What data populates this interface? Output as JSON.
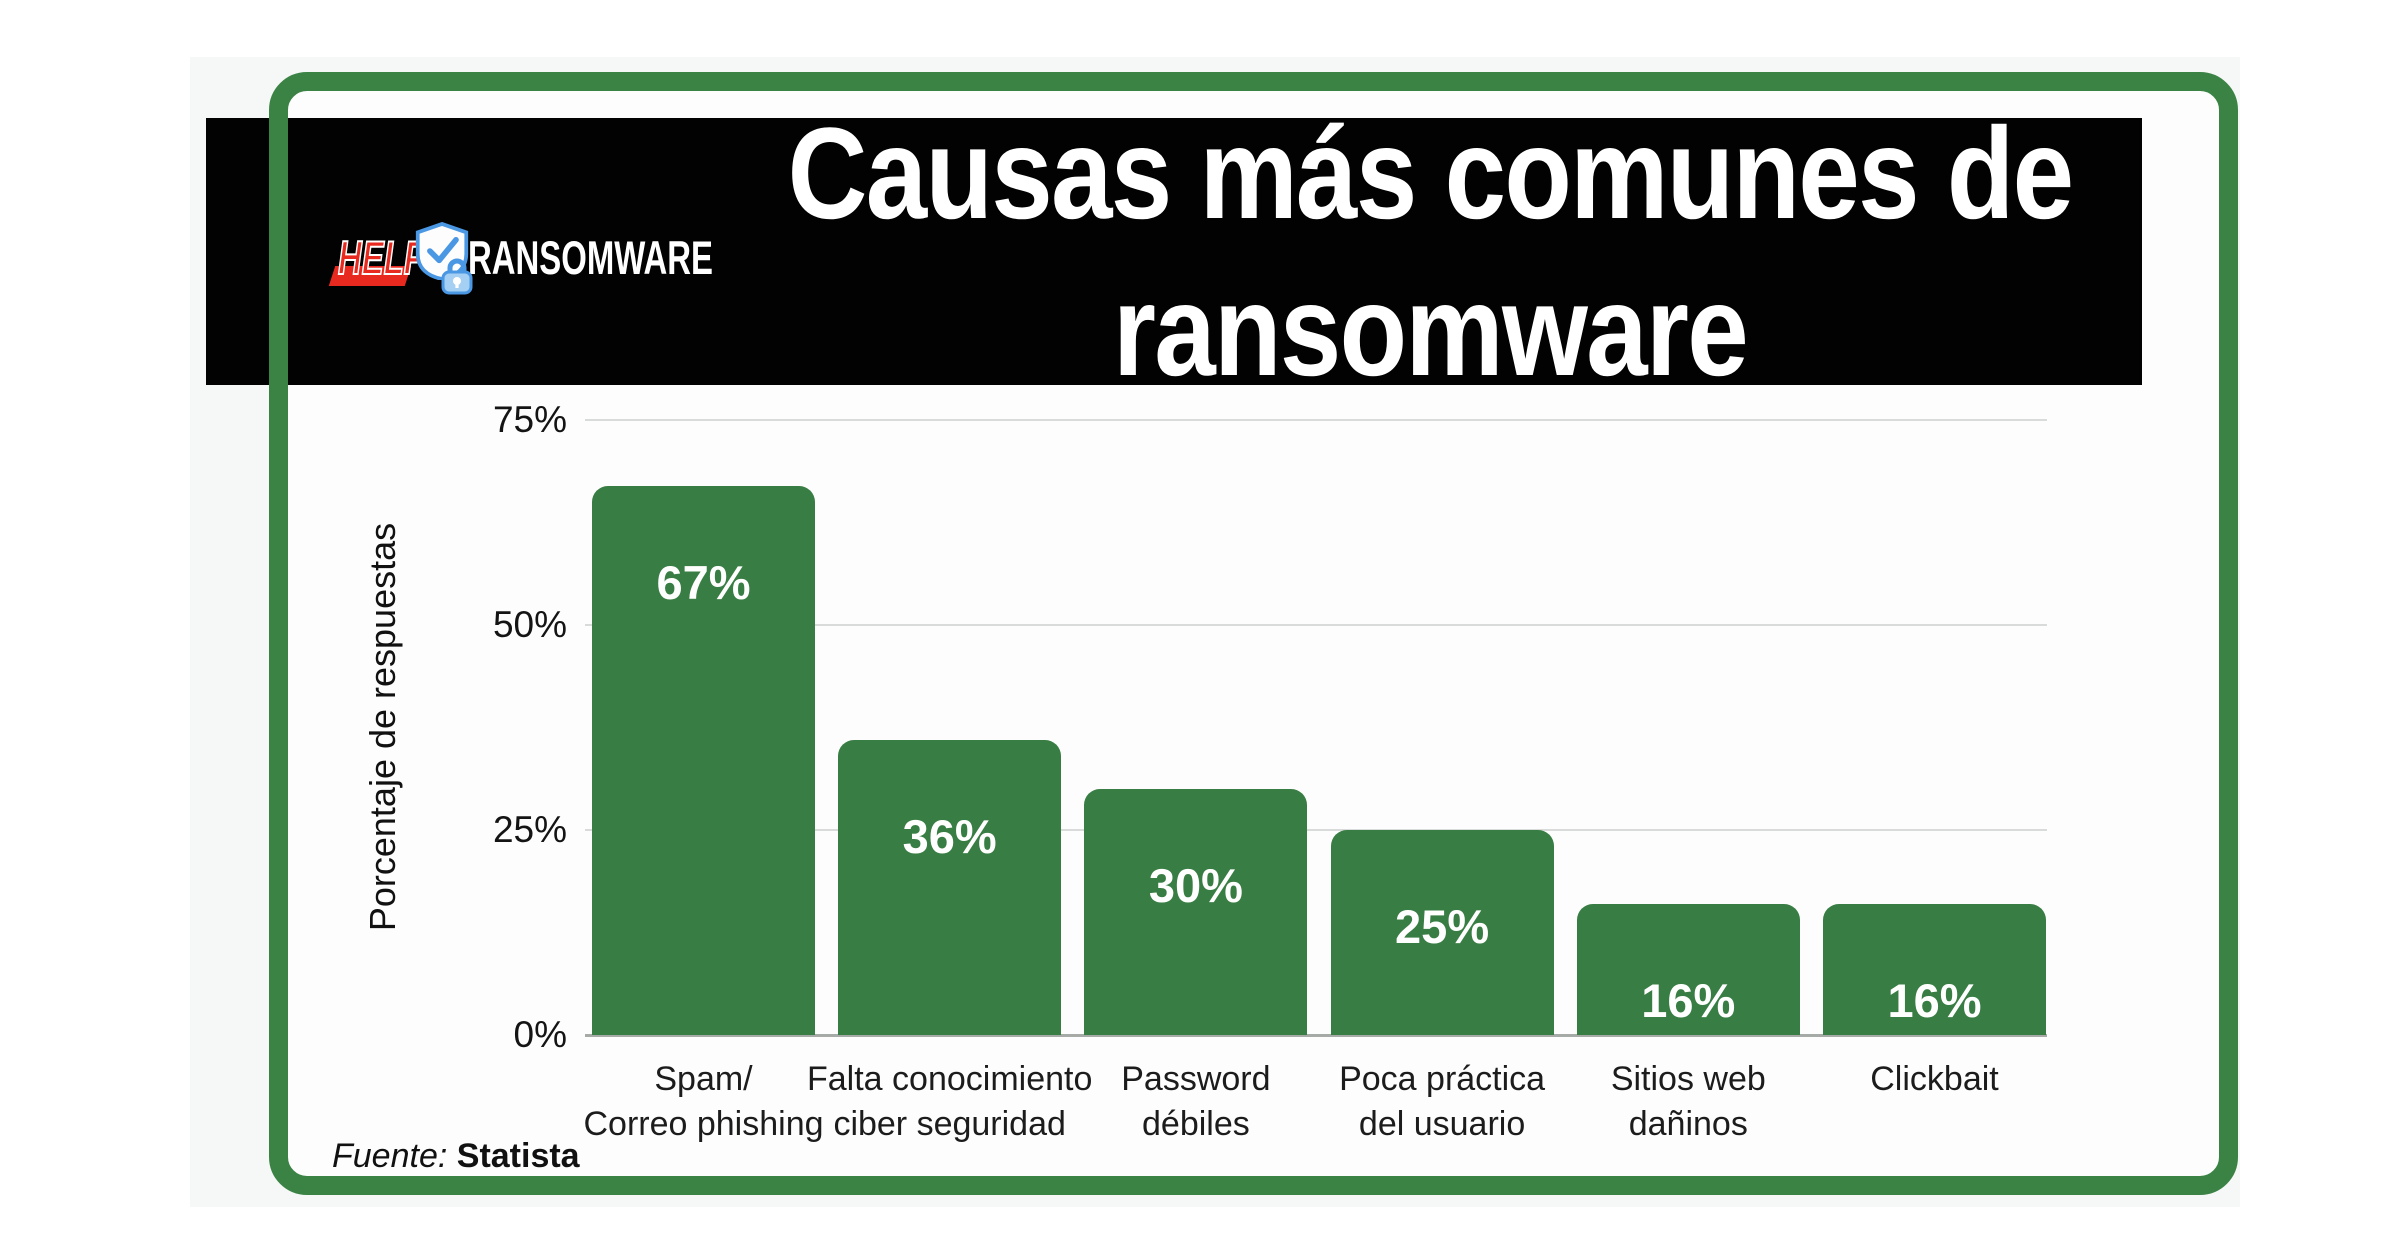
{
  "colors": {
    "canvas_bg": "#f6f8f7",
    "card_bg": "#fcfdfc",
    "band_bg": "#020202",
    "card_border_green": "#3b8345",
    "bar_green": "#387d43",
    "gridline": "#d8dbd9",
    "axis_line": "#a6aba8",
    "logo_red": "#e8291f",
    "logo_blue": "#4a97e4"
  },
  "header": {
    "title_line1": "Causas más comunes de",
    "title_line2": "ransomware",
    "logo": {
      "help_text": "HELP",
      "ransomware_text": "RANSOMWARE",
      "shield_icon": "shield-check-icon",
      "lock_icon": "lock-icon"
    }
  },
  "chart_data": {
    "type": "bar",
    "title": "Causas más comunes de ransomware",
    "categories": [
      [
        "Spam/",
        "Correo phishing"
      ],
      [
        "Falta conocimiento",
        "ciber seguridad"
      ],
      [
        "Password",
        "débiles"
      ],
      [
        "Poca práctica",
        "del usuario"
      ],
      [
        "Sitios web",
        "dañinos"
      ],
      [
        "Clickbait"
      ]
    ],
    "values": [
      67,
      36,
      30,
      25,
      16,
      16
    ],
    "value_labels": [
      "67%",
      "36%",
      "30%",
      "25%",
      "16%",
      "16%"
    ],
    "xlabel": "",
    "ylabel": "Porcentaje de respuestas",
    "yticks": [
      {
        "label": "75%",
        "value": 75
      },
      {
        "label": "50%",
        "value": 50
      },
      {
        "label": "25%",
        "value": 25
      },
      {
        "label": "0%",
        "value": 0
      }
    ],
    "ylim": [
      0,
      75
    ],
    "grid": true,
    "legend": "none"
  },
  "footer": {
    "source_prefix": "Fuente:",
    "source_name": "Statista"
  }
}
